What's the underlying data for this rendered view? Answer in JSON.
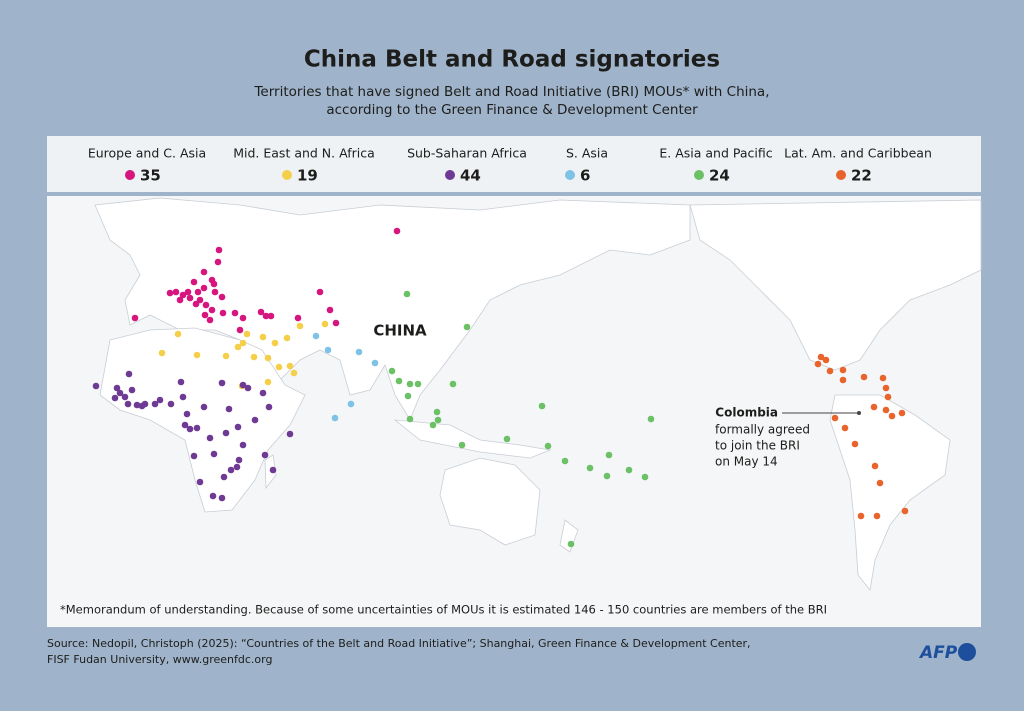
{
  "header": {
    "title": "China Belt and Road signatories",
    "subtitle": [
      "Territories that have signed Belt and Road Initiative (BRI) MOUs* with China,",
      "according to the Green Finance & Development Center"
    ]
  },
  "legend": [
    {
      "name": "Europe and C. Asia",
      "count": 35,
      "color": "#d6157e"
    },
    {
      "name": "Mid. East and N. Africa",
      "count": 19,
      "color": "#f5cf4a"
    },
    {
      "name": "Sub-Saharan Africa",
      "count": 44,
      "color": "#6f3a93"
    },
    {
      "name": "S. Asia",
      "count": 6,
      "color": "#7ec3e6"
    },
    {
      "name": "E. Asia and Pacific",
      "count": 24,
      "color": "#6cc065"
    },
    {
      "name": "Lat. Am. and Caribbean",
      "count": 22,
      "color": "#e8642c"
    }
  ],
  "map": {
    "label": "CHINA",
    "annotation": {
      "title": "Colombia",
      "lines": [
        "formally agreed",
        "to join the BRI",
        "on May 14"
      ]
    }
  },
  "footnote": "*Memorandum of understanding. Because of some uncertainties of MOUs it is estimated 146 - 150 countries are members of the BRI",
  "source": [
    "Source: Nedopil, Christoph (2025): “Countries of the Belt and Road Initiative”; Shanghai, Green Finance & Development Center,",
    "FISF Fudan University, www.greenfdc.org"
  ],
  "logo": "AFP"
}
